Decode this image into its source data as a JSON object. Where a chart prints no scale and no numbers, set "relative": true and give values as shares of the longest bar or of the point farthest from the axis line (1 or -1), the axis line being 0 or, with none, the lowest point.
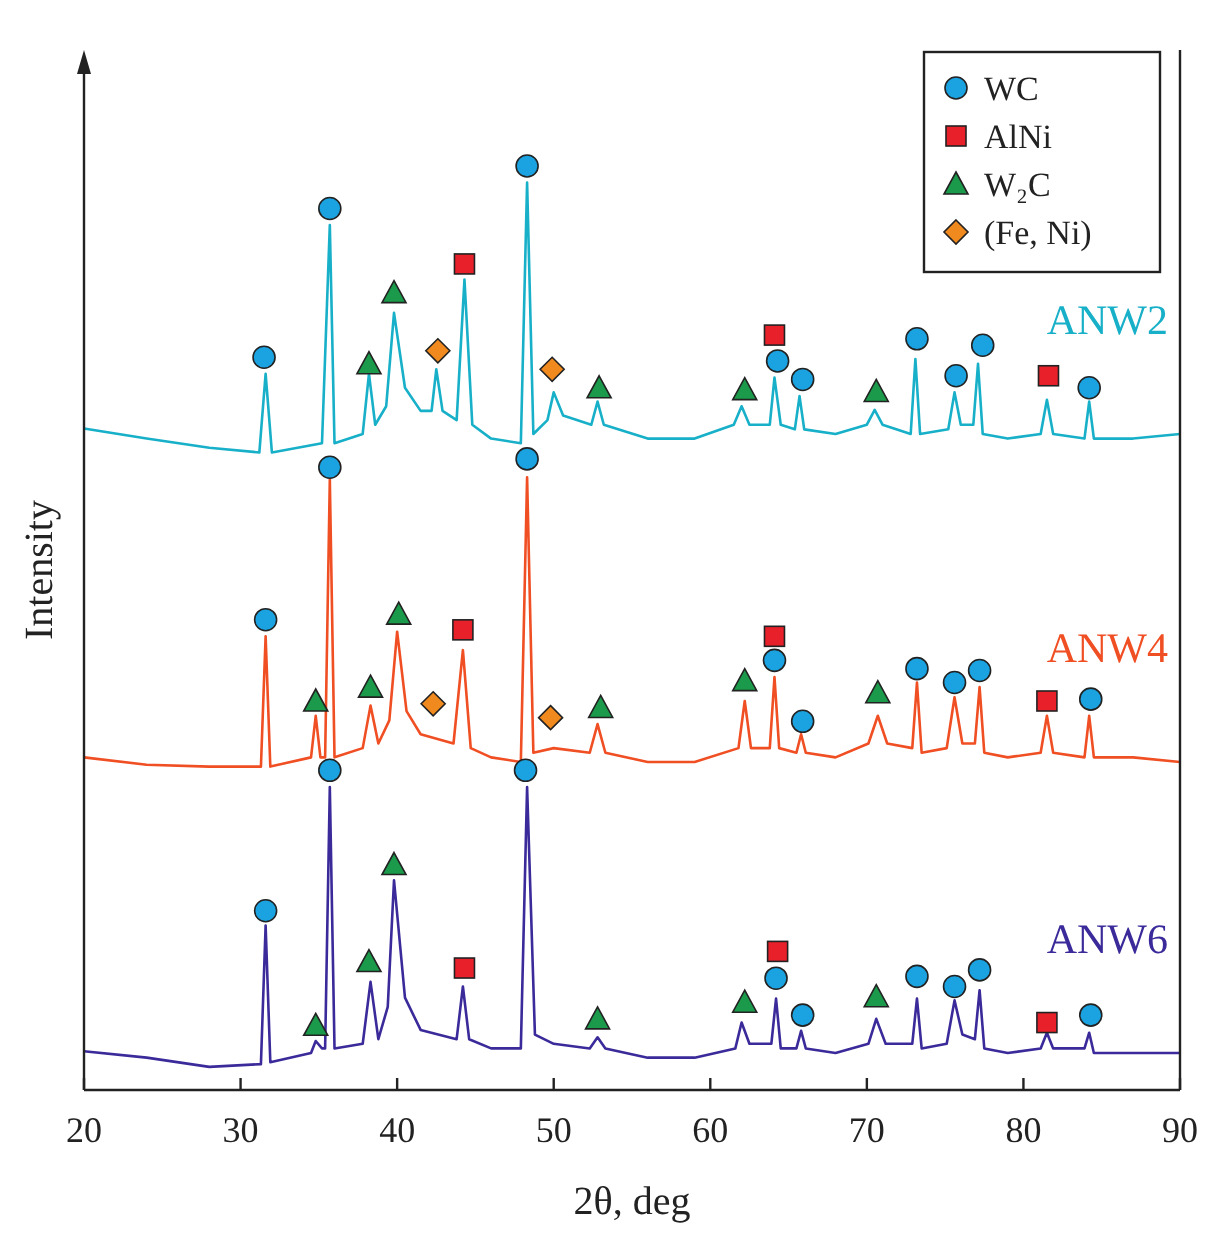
{
  "chart_data": {
    "type": "line",
    "relative": true,
    "xlabel": "2θ, deg",
    "ylabel": "Intensity",
    "xlim": [
      20,
      90
    ],
    "xticks": [
      20,
      30,
      40,
      50,
      60,
      70,
      80,
      90
    ],
    "legend": "top right",
    "series": [
      {
        "name": "ANW2",
        "color": "#17b0c8",
        "x": [
          20,
          24,
          28,
          31.2,
          31.6,
          32,
          35.2,
          35.7,
          36,
          37.8,
          38.2,
          38.6,
          39.3,
          39.8,
          40.5,
          41.5,
          42.2,
          42.5,
          42.9,
          43.8,
          44.3,
          44.8,
          46,
          47.9,
          48.3,
          48.7,
          49.6,
          50,
          50.6,
          52.4,
          52.8,
          53.2,
          56,
          59,
          61.5,
          62,
          62.5,
          63.8,
          64.1,
          64.5,
          65.4,
          65.7,
          66,
          68,
          70,
          70.5,
          71,
          72.8,
          73.1,
          73.4,
          75.2,
          75.6,
          76,
          76.8,
          77.1,
          77.4,
          79,
          81.1,
          81.5,
          81.9,
          83.9,
          84.2,
          84.5,
          87,
          90
        ],
        "values": [
          0.716,
          0.705,
          0.695,
          0.69,
          0.775,
          0.69,
          0.7,
          0.936,
          0.7,
          0.71,
          0.775,
          0.72,
          0.74,
          0.841,
          0.76,
          0.735,
          0.735,
          0.78,
          0.735,
          0.725,
          0.877,
          0.72,
          0.705,
          0.7,
          0.982,
          0.71,
          0.725,
          0.755,
          0.73,
          0.72,
          0.745,
          0.72,
          0.705,
          0.705,
          0.72,
          0.74,
          0.72,
          0.72,
          0.771,
          0.72,
          0.715,
          0.751,
          0.715,
          0.71,
          0.72,
          0.736,
          0.72,
          0.71,
          0.791,
          0.71,
          0.715,
          0.755,
          0.72,
          0.72,
          0.786,
          0.71,
          0.705,
          0.71,
          0.747,
          0.71,
          0.705,
          0.745,
          0.705,
          0.705,
          0.71
        ]
      },
      {
        "name": "ANW4",
        "color": "#f04e23",
        "x": [
          20,
          24,
          28,
          31.3,
          31.6,
          31.9,
          34.5,
          34.8,
          35.1,
          35.4,
          35.7,
          36,
          37.8,
          38.3,
          38.8,
          39.5,
          40,
          40.6,
          41.5,
          43.6,
          44.2,
          44.7,
          46,
          47.9,
          48.3,
          48.7,
          50,
          52.3,
          52.8,
          53.3,
          56,
          59,
          61.8,
          62.2,
          62.6,
          63.8,
          64.1,
          64.4,
          65.5,
          65.8,
          66.1,
          68,
          70.1,
          70.7,
          71.3,
          72.9,
          73.2,
          73.5,
          75.1,
          75.6,
          76.1,
          76.9,
          77.2,
          77.5,
          79,
          81.1,
          81.5,
          81.9,
          83.9,
          84.2,
          84.5,
          87,
          90
        ],
        "values": [
          0.36,
          0.352,
          0.35,
          0.35,
          0.491,
          0.35,
          0.36,
          0.405,
          0.36,
          0.36,
          0.661,
          0.36,
          0.37,
          0.416,
          0.375,
          0.4,
          0.496,
          0.41,
          0.385,
          0.375,
          0.476,
          0.37,
          0.36,
          0.355,
          0.663,
          0.365,
          0.37,
          0.365,
          0.396,
          0.365,
          0.355,
          0.355,
          0.37,
          0.421,
          0.37,
          0.37,
          0.447,
          0.37,
          0.365,
          0.385,
          0.365,
          0.36,
          0.375,
          0.405,
          0.375,
          0.37,
          0.441,
          0.365,
          0.37,
          0.425,
          0.375,
          0.375,
          0.436,
          0.365,
          0.36,
          0.365,
          0.405,
          0.365,
          0.36,
          0.405,
          0.36,
          0.36,
          0.355
        ]
      },
      {
        "name": "ANW6",
        "color": "#3a2a9a",
        "x": [
          20,
          24,
          28,
          31.3,
          31.6,
          31.9,
          34.5,
          34.8,
          35.2,
          35.4,
          35.7,
          36,
          37.8,
          38.3,
          38.8,
          39.4,
          39.8,
          40.5,
          41.5,
          43.8,
          44.2,
          44.6,
          46,
          47.9,
          48.3,
          48.8,
          50,
          52.3,
          52.8,
          53.3,
          56,
          59,
          61.6,
          62,
          62.5,
          63.9,
          64.2,
          64.5,
          65.5,
          65.8,
          66.1,
          68,
          70.1,
          70.6,
          71.2,
          72.9,
          73.2,
          73.5,
          75.1,
          75.6,
          76.1,
          76.9,
          77.2,
          77.5,
          79,
          81.1,
          81.5,
          81.9,
          83.9,
          84.2,
          84.5,
          87,
          90
        ],
        "values": [
          0.042,
          0.035,
          0.025,
          0.028,
          0.178,
          0.03,
          0.04,
          0.053,
          0.045,
          0.045,
          0.328,
          0.045,
          0.05,
          0.117,
          0.055,
          0.09,
          0.227,
          0.1,
          0.065,
          0.055,
          0.112,
          0.055,
          0.045,
          0.045,
          0.328,
          0.06,
          0.05,
          0.045,
          0.057,
          0.045,
          0.035,
          0.035,
          0.045,
          0.073,
          0.05,
          0.05,
          0.099,
          0.045,
          0.045,
          0.064,
          0.045,
          0.04,
          0.05,
          0.077,
          0.05,
          0.05,
          0.099,
          0.045,
          0.05,
          0.097,
          0.06,
          0.055,
          0.108,
          0.045,
          0.04,
          0.045,
          0.062,
          0.045,
          0.045,
          0.062,
          0.04,
          0.04,
          0.04
        ]
      },
      {
        "name": "WC",
        "type": "scatter",
        "marker": "circle",
        "color": "#1aa3e0",
        "x": [
          31.5,
          35.7,
          48.3,
          64.3,
          65.9,
          73.2,
          75.7,
          77.4,
          84.2,
          35.7,
          48.3,
          31.6,
          64.1,
          65.9,
          73.2,
          75.6,
          77.2,
          84.3,
          35.7,
          48.2,
          31.6,
          64.2,
          65.9,
          73.2,
          75.6,
          77.2,
          84.3
        ],
        "values": [
          0.793,
          0.954,
          1.0,
          0.789,
          0.769,
          0.813,
          0.773,
          0.806,
          0.76,
          0.674,
          0.683,
          0.509,
          0.465,
          0.399,
          0.456,
          0.441,
          0.454,
          0.423,
          0.346,
          0.346,
          0.194,
          0.121,
          0.081,
          0.123,
          0.112,
          0.13,
          0.081
        ]
      },
      {
        "name": "AlNi",
        "type": "scatter",
        "marker": "square",
        "color": "#e8202a",
        "x": [
          44.3,
          64.1,
          81.6,
          44.2,
          64.1,
          81.5,
          44.3,
          64.3,
          81.5
        ],
        "values": [
          0.894,
          0.817,
          0.773,
          0.498,
          0.491,
          0.421,
          0.132,
          0.15,
          0.073
        ]
      },
      {
        "name": "W₂C",
        "type": "scatter",
        "marker": "triangle",
        "color": "#1a9a4a",
        "x": [
          38.2,
          39.8,
          52.9,
          62.2,
          70.6,
          34.8,
          38.3,
          40.1,
          53.0,
          62.2,
          70.7,
          34.8,
          38.2,
          39.8,
          52.8,
          62.2,
          70.6
        ],
        "values": [
          0.786,
          0.863,
          0.76,
          0.758,
          0.756,
          0.421,
          0.436,
          0.515,
          0.414,
          0.443,
          0.43,
          0.07,
          0.139,
          0.244,
          0.077,
          0.095,
          0.101
        ]
      },
      {
        "name": "(Fe, Ni)",
        "type": "scatter",
        "marker": "diamond",
        "color": "#f08a1e",
        "x": [
          42.6,
          49.9,
          42.3,
          49.8
        ],
        "values": [
          0.8,
          0.78,
          0.418,
          0.403
        ]
      }
    ]
  }
}
